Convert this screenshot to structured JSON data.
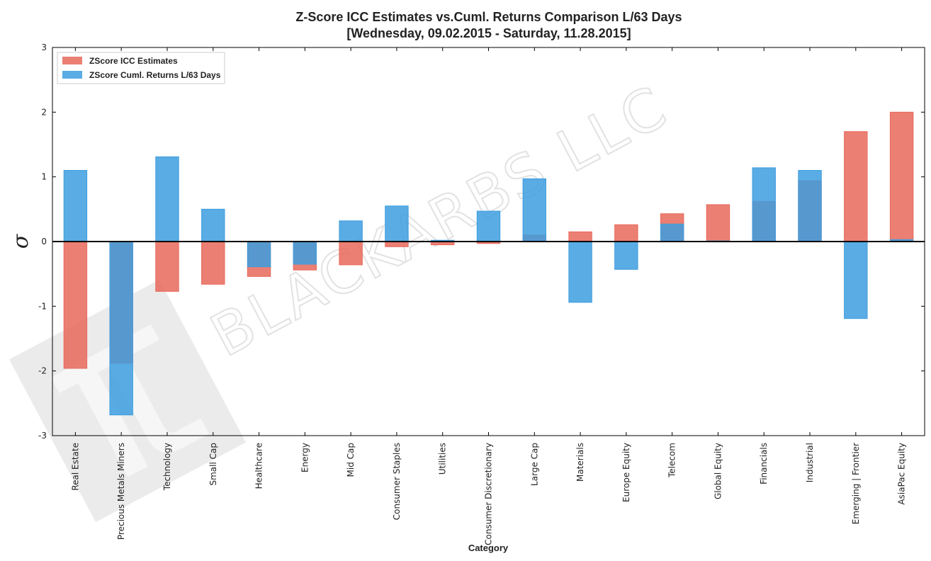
{
  "chart_data": {
    "type": "bar",
    "title": "Z-Score ICC Estimates vs.Cuml. Returns Comparison L/63 Days",
    "subtitle": "[Wednesday, 09.02.2015 - Saturday, 11.28.2015]",
    "xlabel": "Category",
    "ylabel": "σ",
    "ylim": [
      -3,
      3
    ],
    "yticks": [
      "3",
      "2",
      "1",
      "0",
      "-1",
      "-2",
      "-3"
    ],
    "ytick_values": [
      3,
      2,
      1,
      0,
      -1,
      -2,
      -3
    ],
    "legend_position": "top-left",
    "categories": [
      "Real Estate",
      "Precious Metals Miners",
      "Technology",
      "Small Cap",
      "Healthcare",
      "Energy",
      "Mid Cap",
      "Consumer Staples",
      "Utilities",
      "Consumer Discretionary",
      "Large Cap",
      "Materials",
      "Europe Equity",
      "Telecom",
      "Global Equity",
      "Financials",
      "Industrial",
      "Emerging | Frontier",
      "AsiaPac Equity"
    ],
    "series": [
      {
        "name": "ZScore ICC Estimates",
        "color": "#e8685a",
        "values": [
          -1.96,
          -1.88,
          -0.77,
          -0.66,
          -0.54,
          -0.44,
          -0.36,
          -0.08,
          -0.05,
          -0.03,
          0.1,
          0.15,
          0.26,
          0.43,
          0.57,
          0.62,
          0.94,
          1.7,
          2.0
        ]
      },
      {
        "name": "ZScore Cuml. Returns L/63 Days",
        "color": "#3d9ddf",
        "values": [
          1.1,
          -2.68,
          1.31,
          0.5,
          -0.39,
          -0.35,
          0.32,
          0.55,
          0.02,
          0.47,
          0.97,
          -0.94,
          -0.43,
          0.27,
          0.01,
          1.14,
          1.1,
          -1.19,
          0.03
        ]
      }
    ],
    "watermark": "BLACKARBS LLC"
  }
}
